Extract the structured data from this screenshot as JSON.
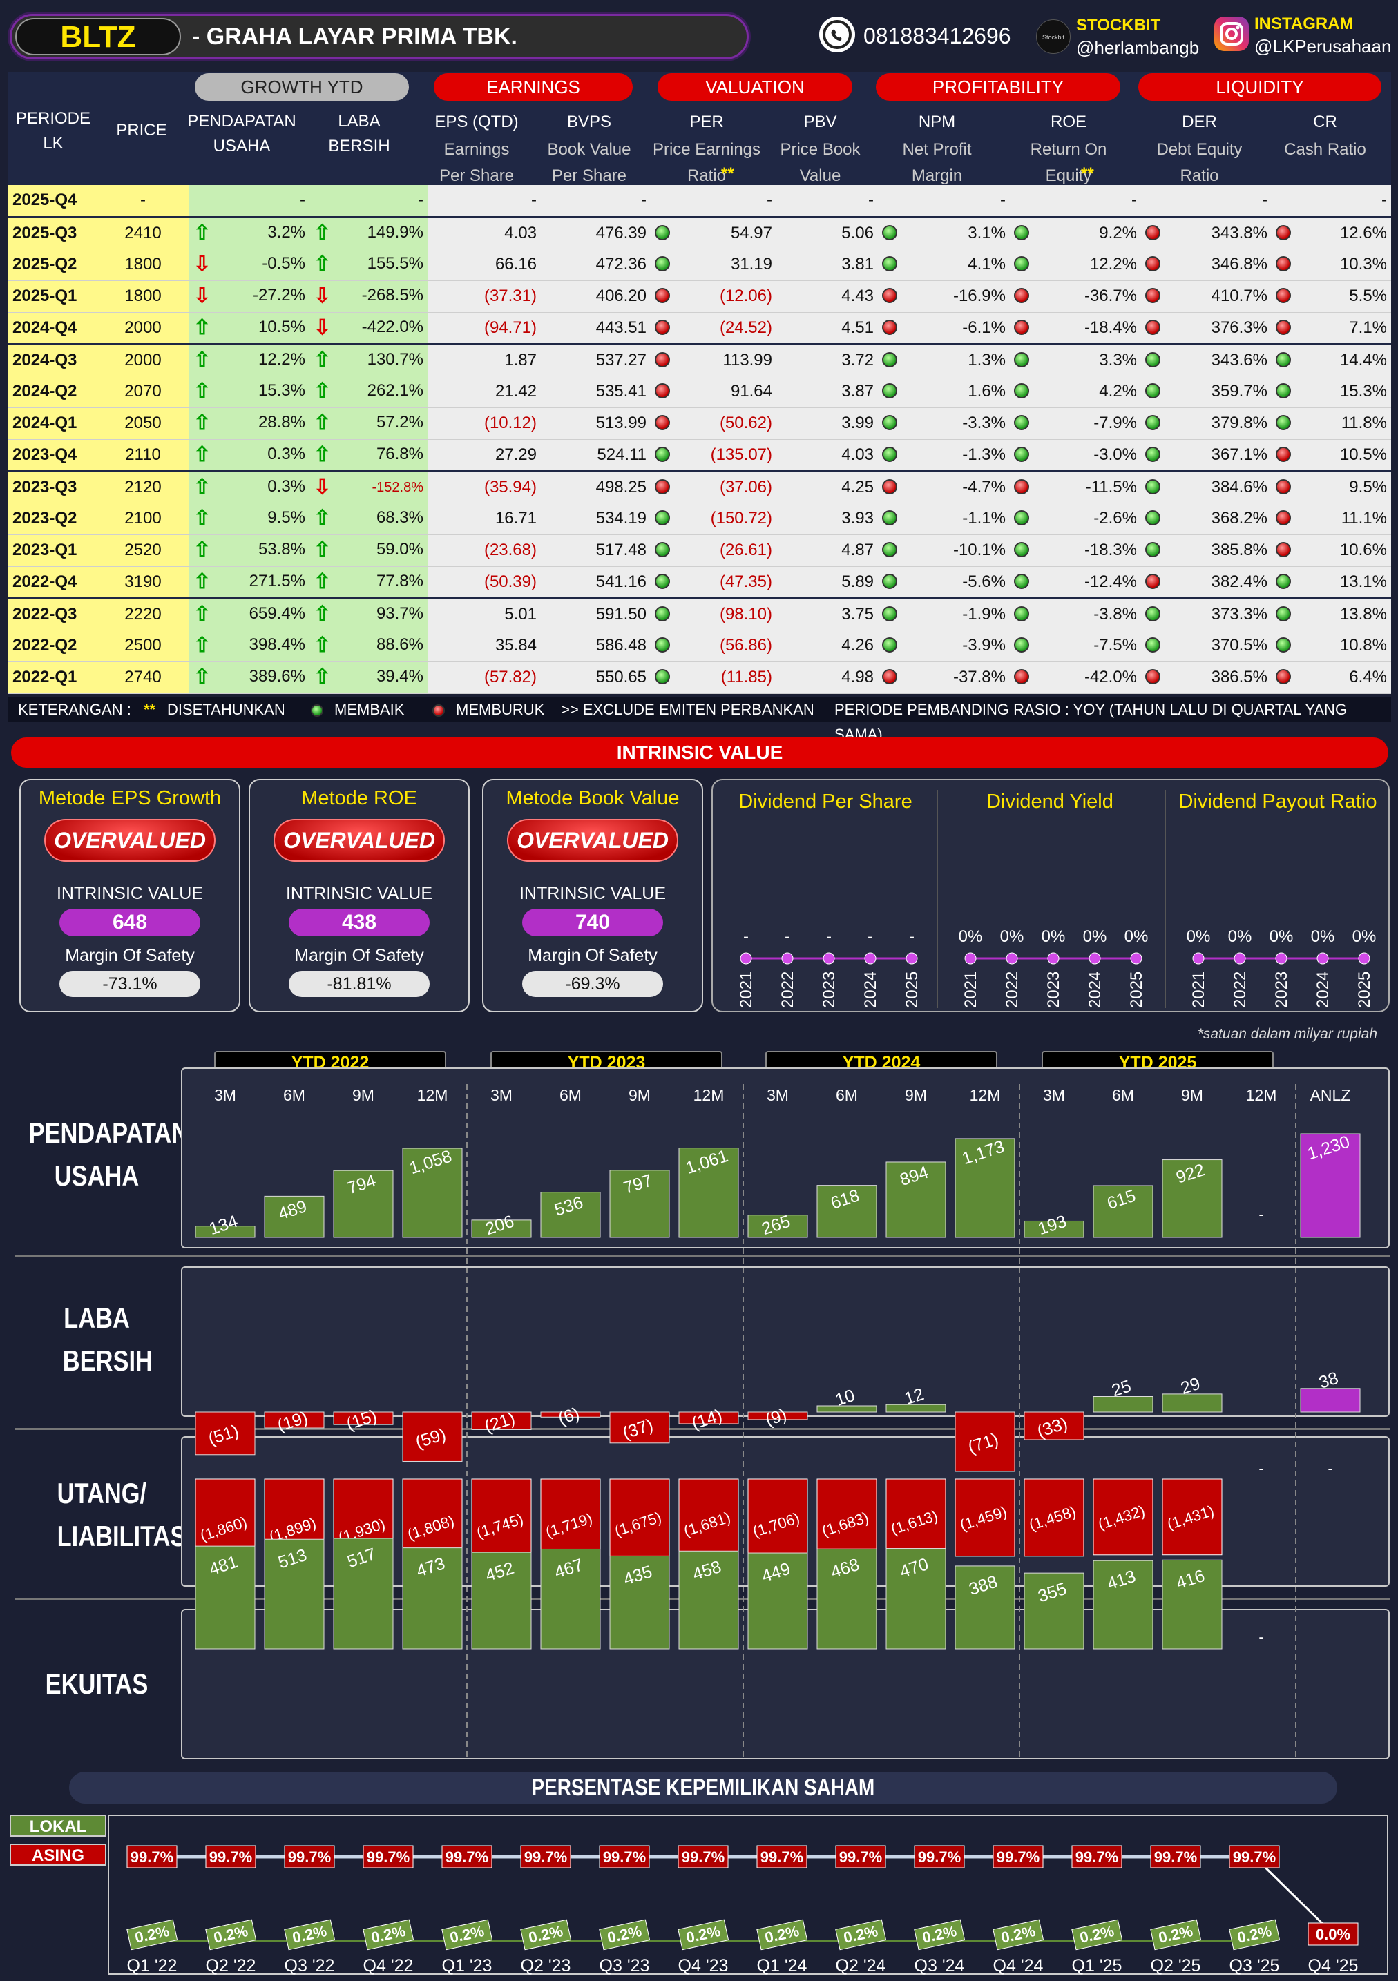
{
  "header": {
    "ticker": "BLTZ",
    "company": "-  GRAHA LAYAR PRIMA TBK.",
    "phone": "081883412696",
    "stockbit_label": "STOCKBIT",
    "stockbit_handle": "@herlambangb",
    "instagram_label": "INSTAGRAM",
    "instagram_handle": "@LKPerusahaan",
    "stockbit_logo": "Stockbit"
  },
  "sections": {
    "growth": "GROWTH YTD",
    "earnings": "EARNINGS",
    "valuation": "VALUATION",
    "profitability": "PROFITABILITY",
    "liquidity": "LIQUIDITY"
  },
  "columns": {
    "periode": "PERIODE LK",
    "price": "PRICE",
    "pendapatan": "PENDAPATAN USAHA",
    "laba": "LABA BERSIH",
    "eps": "EPS (QTD)",
    "eps_sub": "Earnings Per Share",
    "bvps": "BVPS",
    "bvps_sub": "Book Value Per Share",
    "per": "PER",
    "per_sub": "Price Earnings Ratio",
    "per_star": "**",
    "pbv": "PBV",
    "pbv_sub": "Price Book Value",
    "npm": "NPM",
    "npm_sub": "Net Profit Margin",
    "roe": "ROE",
    "roe_sub": "Return On Equity",
    "roe_star": "**",
    "der": "DER",
    "der_sub": "Debt Equity Ratio",
    "cr": "CR",
    "cr_sub": "Cash Ratio"
  },
  "rows": [
    {
      "p": "2025-Q4",
      "price": "-",
      "rev": "-",
      "ra": "",
      "lb": "-",
      "la": "",
      "eps": "-",
      "bvps": "-",
      "per": "-",
      "pd": "",
      "pbv": "-",
      "npm": "-",
      "nd": "",
      "roe": "-",
      "rd": "",
      "der": "-",
      "dd": "",
      "cr": "-",
      "cd": ""
    },
    {
      "p": "2025-Q3",
      "price": "2410",
      "rev": "3.2%",
      "ra": "up",
      "lb": "149.9%",
      "la": "up",
      "eps": "4.03",
      "bvps": "476.39",
      "per": "54.97",
      "pd": "g",
      "pbv": "5.06",
      "npm": "3.1%",
      "nd": "g",
      "roe": "9.2%",
      "rd": "g",
      "der": "343.8%",
      "dd": "r",
      "cr": "12.6%",
      "cd": "r"
    },
    {
      "p": "2025-Q2",
      "price": "1800",
      "rev": "-0.5%",
      "ra": "dn",
      "lb": "155.5%",
      "la": "up",
      "eps": "66.16",
      "bvps": "472.36",
      "per": "31.19",
      "pd": "g",
      "pbv": "3.81",
      "npm": "4.1%",
      "nd": "g",
      "roe": "12.2%",
      "rd": "g",
      "der": "346.8%",
      "dd": "r",
      "cr": "10.3%",
      "cd": "r"
    },
    {
      "p": "2025-Q1",
      "price": "1800",
      "rev": "-27.2%",
      "ra": "dn",
      "lb": "-268.5%",
      "la": "dn",
      "eps": "(37.31)",
      "bvps": "406.20",
      "per": "(12.06)",
      "pd": "r",
      "pbv": "4.43",
      "npm": "-16.9%",
      "nd": "r",
      "roe": "-36.7%",
      "rd": "r",
      "der": "410.7%",
      "dd": "r",
      "cr": "5.5%",
      "cd": "r"
    },
    {
      "p": "2024-Q4",
      "price": "2000",
      "rev": "10.5%",
      "ra": "up",
      "lb": "-422.0%",
      "la": "dn",
      "eps": "(94.71)",
      "bvps": "443.51",
      "per": "(24.52)",
      "pd": "r",
      "pbv": "4.51",
      "npm": "-6.1%",
      "nd": "r",
      "roe": "-18.4%",
      "rd": "r",
      "der": "376.3%",
      "dd": "r",
      "cr": "7.1%",
      "cd": "r"
    },
    {
      "p": "2024-Q3",
      "price": "2000",
      "rev": "12.2%",
      "ra": "up",
      "lb": "130.7%",
      "la": "up",
      "eps": "1.87",
      "bvps": "537.27",
      "per": "113.99",
      "pd": "r",
      "pbv": "3.72",
      "npm": "1.3%",
      "nd": "g",
      "roe": "3.3%",
      "rd": "g",
      "der": "343.6%",
      "dd": "g",
      "cr": "14.4%",
      "cd": "g"
    },
    {
      "p": "2024-Q2",
      "price": "2070",
      "rev": "15.3%",
      "ra": "up",
      "lb": "262.1%",
      "la": "up",
      "eps": "21.42",
      "bvps": "535.41",
      "per": "91.64",
      "pd": "r",
      "pbv": "3.87",
      "npm": "1.6%",
      "nd": "g",
      "roe": "4.2%",
      "rd": "g",
      "der": "359.7%",
      "dd": "g",
      "cr": "15.3%",
      "cd": "g"
    },
    {
      "p": "2024-Q1",
      "price": "2050",
      "rev": "28.8%",
      "ra": "up",
      "lb": "57.2%",
      "la": "up",
      "eps": "(10.12)",
      "bvps": "513.99",
      "per": "(50.62)",
      "pd": "r",
      "pbv": "3.99",
      "npm": "-3.3%",
      "nd": "g",
      "roe": "-7.9%",
      "rd": "g",
      "der": "379.8%",
      "dd": "g",
      "cr": "11.8%",
      "cd": "g"
    },
    {
      "p": "2023-Q4",
      "price": "2110",
      "rev": "0.3%",
      "ra": "up",
      "lb": "76.8%",
      "la": "up",
      "eps": "27.29",
      "bvps": "524.11",
      "per": "(135.07)",
      "pd": "g",
      "pbv": "4.03",
      "npm": "-1.3%",
      "nd": "g",
      "roe": "-3.0%",
      "rd": "g",
      "der": "367.1%",
      "dd": "g",
      "cr": "10.5%",
      "cd": "r"
    },
    {
      "p": "2023-Q3",
      "price": "2120",
      "rev": "0.3%",
      "ra": "up",
      "lb": "-152.8%",
      "la": "dn",
      "eps": "(35.94)",
      "bvps": "498.25",
      "per": "(37.06)",
      "pd": "r",
      "pbv": "4.25",
      "npm": "-4.7%",
      "nd": "r",
      "roe": "-11.5%",
      "rd": "r",
      "der": "384.6%",
      "dd": "g",
      "cr": "9.5%",
      "cd": "r"
    },
    {
      "p": "2023-Q2",
      "price": "2100",
      "rev": "9.5%",
      "ra": "up",
      "lb": "68.3%",
      "la": "up",
      "eps": "16.71",
      "bvps": "534.19",
      "per": "(150.72)",
      "pd": "g",
      "pbv": "3.93",
      "npm": "-1.1%",
      "nd": "g",
      "roe": "-2.6%",
      "rd": "g",
      "der": "368.2%",
      "dd": "g",
      "cr": "11.1%",
      "cd": "r"
    },
    {
      "p": "2023-Q1",
      "price": "2520",
      "rev": "53.8%",
      "ra": "up",
      "lb": "59.0%",
      "la": "up",
      "eps": "(23.68)",
      "bvps": "517.48",
      "per": "(26.61)",
      "pd": "g",
      "pbv": "4.87",
      "npm": "-10.1%",
      "nd": "g",
      "roe": "-18.3%",
      "rd": "g",
      "der": "385.8%",
      "dd": "g",
      "cr": "10.6%",
      "cd": "r"
    },
    {
      "p": "2022-Q4",
      "price": "3190",
      "rev": "271.5%",
      "ra": "up",
      "lb": "77.8%",
      "la": "up",
      "eps": "(50.39)",
      "bvps": "541.16",
      "per": "(47.35)",
      "pd": "g",
      "pbv": "5.89",
      "npm": "-5.6%",
      "nd": "g",
      "roe": "-12.4%",
      "rd": "g",
      "der": "382.4%",
      "dd": "r",
      "cr": "13.1%",
      "cd": "g"
    },
    {
      "p": "2022-Q3",
      "price": "2220",
      "rev": "659.4%",
      "ra": "up",
      "lb": "93.7%",
      "la": "up",
      "eps": "5.01",
      "bvps": "591.50",
      "per": "(98.10)",
      "pd": "g",
      "pbv": "3.75",
      "npm": "-1.9%",
      "nd": "g",
      "roe": "-3.8%",
      "rd": "g",
      "der": "373.3%",
      "dd": "g",
      "cr": "13.8%",
      "cd": "g"
    },
    {
      "p": "2022-Q2",
      "price": "2500",
      "rev": "398.4%",
      "ra": "up",
      "lb": "88.6%",
      "la": "up",
      "eps": "35.84",
      "bvps": "586.48",
      "per": "(56.86)",
      "pd": "g",
      "pbv": "4.26",
      "npm": "-3.9%",
      "nd": "g",
      "roe": "-7.5%",
      "rd": "g",
      "der": "370.5%",
      "dd": "g",
      "cr": "10.8%",
      "cd": "g"
    },
    {
      "p": "2022-Q1",
      "price": "2740",
      "rev": "389.6%",
      "ra": "up",
      "lb": "39.4%",
      "la": "up",
      "eps": "(57.82)",
      "bvps": "550.65",
      "per": "(11.85)",
      "pd": "g",
      "pbv": "4.98",
      "npm": "-37.8%",
      "nd": "r",
      "roe": "-42.0%",
      "rd": "r",
      "der": "386.5%",
      "dd": "r",
      "cr": "6.4%",
      "cd": "r"
    }
  ],
  "keterangan": {
    "label": "KETERANGAN :",
    "star": "**",
    "star_text": "DISETAHUNKAN",
    "membaik": "MEMBAIK",
    "memburuk": "MEMBURUK",
    "exclude": ">> EXCLUDE EMITEN PERBANKAN",
    "periode": "PERIODE PEMBANDING RASIO : YOY (TAHUN LALU DI QUARTAL YANG SAMA)"
  },
  "intrinsic": {
    "title": "INTRINSIC VALUE",
    "iv_label": "INTRINSIC VALUE",
    "mos_label": "Margin Of Safety",
    "cards": [
      {
        "title": "Metode EPS Growth",
        "status": "OVERVALUED",
        "iv": "648",
        "mos": "-73.1%"
      },
      {
        "title": "Metode ROE",
        "status": "OVERVALUED",
        "iv": "438",
        "mos": "-81.81%"
      },
      {
        "title": "Metode Book Value",
        "status": "OVERVALUED",
        "iv": "740",
        "mos": "-69.3%"
      }
    ]
  },
  "dividend": {
    "years": [
      "2021",
      "2022",
      "2023",
      "2024",
      "2025"
    ],
    "panels": [
      {
        "title": "Dividend Per Share",
        "vals": [
          "-",
          "-",
          "-",
          "-",
          "-"
        ]
      },
      {
        "title": "Dividend Yield",
        "vals": [
          "0%",
          "0%",
          "0%",
          "0%",
          "0%"
        ]
      },
      {
        "title": "Dividend Payout Ratio",
        "vals": [
          "0%",
          "0%",
          "0%",
          "0%",
          "0%"
        ]
      }
    ]
  },
  "note": "*satuan dalam milyar rupiah",
  "ytd": [
    "YTD 2022",
    "YTD 2023",
    "YTD 2024",
    "YTD 2025"
  ],
  "months": [
    "3M",
    "6M",
    "9M",
    "12M",
    "3M",
    "6M",
    "9M",
    "12M",
    "3M",
    "6M",
    "9M",
    "12M",
    "3M",
    "6M",
    "9M",
    "12M",
    "ANLZ"
  ],
  "chart_data": [
    {
      "type": "bar",
      "title": "PENDAPATAN USAHA",
      "categories": [
        "3M '22",
        "6M '22",
        "9M '22",
        "12M '22",
        "3M '23",
        "6M '23",
        "9M '23",
        "12M '23",
        "3M '24",
        "6M '24",
        "9M '24",
        "12M '24",
        "3M '25",
        "6M '25",
        "9M '25",
        "12M '25",
        "ANLZ"
      ],
      "values": [
        134,
        489,
        794,
        1058,
        206,
        536,
        797,
        1061,
        265,
        618,
        894,
        1173,
        193,
        615,
        922,
        null,
        1230
      ],
      "labels": [
        "134",
        "489",
        "794",
        "1,058",
        "206",
        "536",
        "797",
        "1,061",
        "265",
        "618",
        "894",
        "1,173",
        "193",
        "615",
        "922",
        "-",
        "1,230"
      ]
    },
    {
      "type": "bar",
      "title": "LABA BERSIH",
      "categories": [
        "3M '22",
        "6M '22",
        "9M '22",
        "12M '22",
        "3M '23",
        "6M '23",
        "9M '23",
        "12M '23",
        "3M '24",
        "6M '24",
        "9M '24",
        "12M '24",
        "3M '25",
        "6M '25",
        "9M '25",
        "12M '25",
        "ANLZ"
      ],
      "values": [
        -51,
        -19,
        -15,
        -59,
        -21,
        -6,
        -37,
        -14,
        -9,
        10,
        12,
        -71,
        -33,
        25,
        29,
        null,
        38
      ],
      "labels": [
        "(51)",
        "(19)",
        "(15)",
        "(59)",
        "(21)",
        "(6)",
        "(37)",
        "(14)",
        "(9)",
        "10",
        "12",
        "(71)",
        "(33)",
        "25",
        "29",
        "-",
        "38"
      ]
    },
    {
      "type": "bar",
      "title": "UTANG/ LIABILITAS",
      "categories": [
        "3M '22",
        "6M '22",
        "9M '22",
        "12M '22",
        "3M '23",
        "6M '23",
        "9M '23",
        "12M '23",
        "3M '24",
        "6M '24",
        "9M '24",
        "12M '24",
        "3M '25",
        "6M '25",
        "9M '25",
        "12M '25",
        "ANLZ"
      ],
      "values": [
        -1860,
        -1899,
        -1930,
        -1808,
        -1745,
        -1719,
        -1675,
        -1681,
        -1706,
        -1683,
        -1613,
        -1459,
        -1458,
        -1432,
        -1431,
        null,
        null
      ],
      "labels": [
        "(1,860)",
        "(1,899)",
        "(1,930)",
        "(1,808)",
        "(1,745)",
        "(1,719)",
        "(1,675)",
        "(1,681)",
        "(1,706)",
        "(1,683)",
        "(1,613)",
        "(1,459)",
        "(1,458)",
        "(1,432)",
        "(1,431)",
        "-",
        "-"
      ]
    },
    {
      "type": "bar",
      "title": "EKUITAS",
      "categories": [
        "3M '22",
        "6M '22",
        "9M '22",
        "12M '22",
        "3M '23",
        "6M '23",
        "9M '23",
        "12M '23",
        "3M '24",
        "6M '24",
        "9M '24",
        "12M '24",
        "3M '25",
        "6M '25",
        "9M '25",
        "12M '25",
        "ANLZ"
      ],
      "values": [
        481,
        513,
        517,
        473,
        452,
        467,
        435,
        458,
        449,
        468,
        470,
        388,
        355,
        413,
        416,
        null,
        null
      ],
      "labels": [
        "481",
        "513",
        "517",
        "473",
        "452",
        "467",
        "435",
        "458",
        "449",
        "468",
        "470",
        "388",
        "355",
        "413",
        "416",
        "-",
        ""
      ]
    },
    {
      "type": "line",
      "title": "PERSENTASE KEPEMILIKAN SAHAM",
      "categories": [
        "Q1 '22",
        "Q2 '22",
        "Q3 '22",
        "Q4 '22",
        "Q1 '23",
        "Q2 '23",
        "Q3 '23",
        "Q4 '23",
        "Q1 '24",
        "Q2 '24",
        "Q3 '24",
        "Q4 '24",
        "Q1 '25",
        "Q2 '25",
        "Q3 '25",
        "Q4 '25"
      ],
      "series": [
        {
          "name": "LOKAL",
          "values": [
            99.7,
            99.7,
            99.7,
            99.7,
            99.7,
            99.7,
            99.7,
            99.7,
            99.7,
            99.7,
            99.7,
            99.7,
            99.7,
            99.7,
            99.7,
            0.0
          ],
          "labels": [
            "99.7%",
            "99.7%",
            "99.7%",
            "99.7%",
            "99.7%",
            "99.7%",
            "99.7%",
            "99.7%",
            "99.7%",
            "99.7%",
            "99.7%",
            "99.7%",
            "99.7%",
            "99.7%",
            "99.7%",
            "0.0%"
          ]
        },
        {
          "name": "ASING",
          "values": [
            0.2,
            0.2,
            0.2,
            0.2,
            0.2,
            0.2,
            0.2,
            0.2,
            0.2,
            0.2,
            0.2,
            0.2,
            0.2,
            0.2,
            0.2,
            null
          ],
          "labels": [
            "0.2%",
            "0.2%",
            "0.2%",
            "0.2%",
            "0.2%",
            "0.2%",
            "0.2%",
            "0.2%",
            "0.2%",
            "0.2%",
            "0.2%",
            "0.2%",
            "0.2%",
            "0.2%",
            "0.2%",
            ""
          ]
        }
      ]
    }
  ],
  "rowtitles": [
    "PENDAPATAN USAHA",
    "LABA BERSIH",
    "UTANG/ LIABILITAS",
    "EKUITAS"
  ],
  "legend": {
    "lokal": "LOKAL",
    "asing": "ASING"
  },
  "colors": {
    "green": "#5e8a35",
    "red": "#c00000",
    "purple": "#b22fc7",
    "yellow": "#ffe600"
  }
}
